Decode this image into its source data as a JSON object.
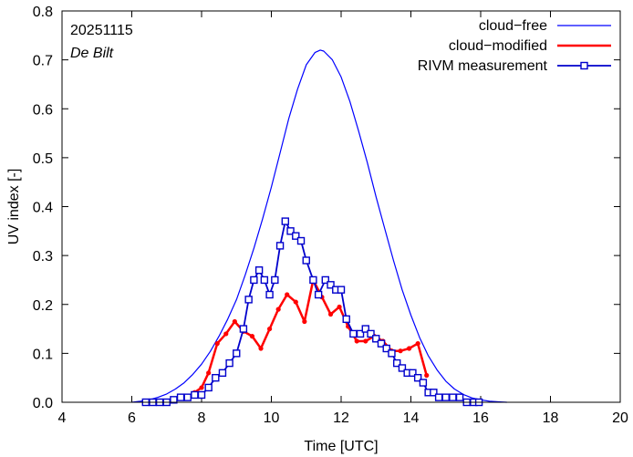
{
  "chart_data": {
    "type": "line",
    "title": "",
    "xlabel": "Time  [UTC]",
    "ylabel": "UV index  [-]",
    "xlim": [
      4,
      20
    ],
    "ylim": [
      0,
      0.8
    ],
    "xticks": [
      4,
      6,
      8,
      10,
      12,
      14,
      16,
      18,
      20
    ],
    "yticks": [
      0.0,
      0.1,
      0.2,
      0.3,
      0.4,
      0.5,
      0.6,
      0.7,
      0.8
    ],
    "xtick_labels": [
      "4",
      "6",
      "8",
      "10",
      "12",
      "14",
      "16",
      "18",
      "20"
    ],
    "ytick_labels": [
      "0.0",
      "0.1",
      "0.2",
      "0.3",
      "0.4",
      "0.5",
      "0.6",
      "0.7",
      "0.8"
    ],
    "annotations": {
      "date": "20251115",
      "station": "De Bilt"
    },
    "legend_position": "top-right",
    "series": [
      {
        "name": "cloud−free",
        "color": "#0000ff",
        "style": "line",
        "peak_x": 11.4,
        "peak_y": 0.72,
        "x": [
          6.0,
          6.25,
          6.5,
          6.75,
          7.0,
          7.25,
          7.5,
          7.75,
          8.0,
          8.25,
          8.5,
          8.75,
          9.0,
          9.25,
          9.5,
          9.75,
          10.0,
          10.25,
          10.5,
          10.75,
          11.0,
          11.25,
          11.4,
          11.5,
          11.75,
          12.0,
          12.25,
          12.5,
          12.75,
          13.0,
          13.25,
          13.5,
          13.75,
          14.0,
          14.25,
          14.5,
          14.75,
          15.0,
          15.25,
          15.5,
          15.75,
          16.0,
          16.25,
          16.5,
          16.75
        ],
        "values": [
          0.0,
          0.002,
          0.005,
          0.01,
          0.017,
          0.027,
          0.04,
          0.057,
          0.078,
          0.104,
          0.135,
          0.17,
          0.21,
          0.26,
          0.315,
          0.375,
          0.44,
          0.51,
          0.58,
          0.64,
          0.69,
          0.715,
          0.72,
          0.718,
          0.7,
          0.665,
          0.615,
          0.555,
          0.49,
          0.42,
          0.355,
          0.29,
          0.23,
          0.178,
          0.132,
          0.095,
          0.066,
          0.043,
          0.027,
          0.016,
          0.009,
          0.005,
          0.002,
          0.001,
          0.0
        ]
      },
      {
        "name": "cloud−modified",
        "color": "#ff0000",
        "style": "line+dot",
        "x": [
          7.8,
          8.0,
          8.2,
          8.45,
          8.7,
          8.95,
          9.2,
          9.45,
          9.7,
          9.95,
          10.2,
          10.45,
          10.7,
          10.95,
          11.2,
          11.45,
          11.7,
          11.95,
          12.2,
          12.45,
          12.7,
          12.95,
          13.2,
          13.45,
          13.7,
          13.95,
          14.2,
          14.45
        ],
        "values": [
          0.02,
          0.03,
          0.06,
          0.12,
          0.14,
          0.165,
          0.145,
          0.135,
          0.11,
          0.15,
          0.19,
          0.22,
          0.205,
          0.165,
          0.25,
          0.215,
          0.18,
          0.195,
          0.155,
          0.125,
          0.125,
          0.135,
          0.125,
          0.105,
          0.105,
          0.11,
          0.12,
          0.055
        ]
      },
      {
        "name": "RIVM measurement",
        "color": "#0000cc",
        "style": "line+square",
        "x": [
          6.4,
          6.6,
          6.8,
          7.0,
          7.2,
          7.4,
          7.6,
          7.8,
          8.0,
          8.2,
          8.4,
          8.6,
          8.8,
          9.0,
          9.2,
          9.35,
          9.5,
          9.65,
          9.8,
          9.95,
          10.1,
          10.25,
          10.4,
          10.55,
          10.7,
          10.85,
          11.0,
          11.2,
          11.35,
          11.55,
          11.7,
          11.85,
          12.0,
          12.15,
          12.35,
          12.55,
          12.7,
          12.85,
          13.0,
          13.15,
          13.3,
          13.45,
          13.6,
          13.75,
          13.9,
          14.05,
          14.2,
          14.35,
          14.5,
          14.65,
          14.8,
          15.0,
          15.2,
          15.4,
          15.6,
          15.8,
          15.95
        ],
        "values": [
          0.0,
          0.0,
          0.0,
          0.0,
          0.005,
          0.01,
          0.01,
          0.015,
          0.015,
          0.03,
          0.05,
          0.06,
          0.08,
          0.1,
          0.15,
          0.21,
          0.25,
          0.27,
          0.25,
          0.22,
          0.25,
          0.32,
          0.37,
          0.35,
          0.34,
          0.33,
          0.29,
          0.25,
          0.22,
          0.25,
          0.24,
          0.23,
          0.23,
          0.17,
          0.14,
          0.14,
          0.15,
          0.14,
          0.13,
          0.12,
          0.11,
          0.1,
          0.08,
          0.07,
          0.06,
          0.06,
          0.05,
          0.04,
          0.02,
          0.02,
          0.01,
          0.01,
          0.01,
          0.01,
          0.0,
          0.0,
          0.0
        ]
      }
    ]
  }
}
